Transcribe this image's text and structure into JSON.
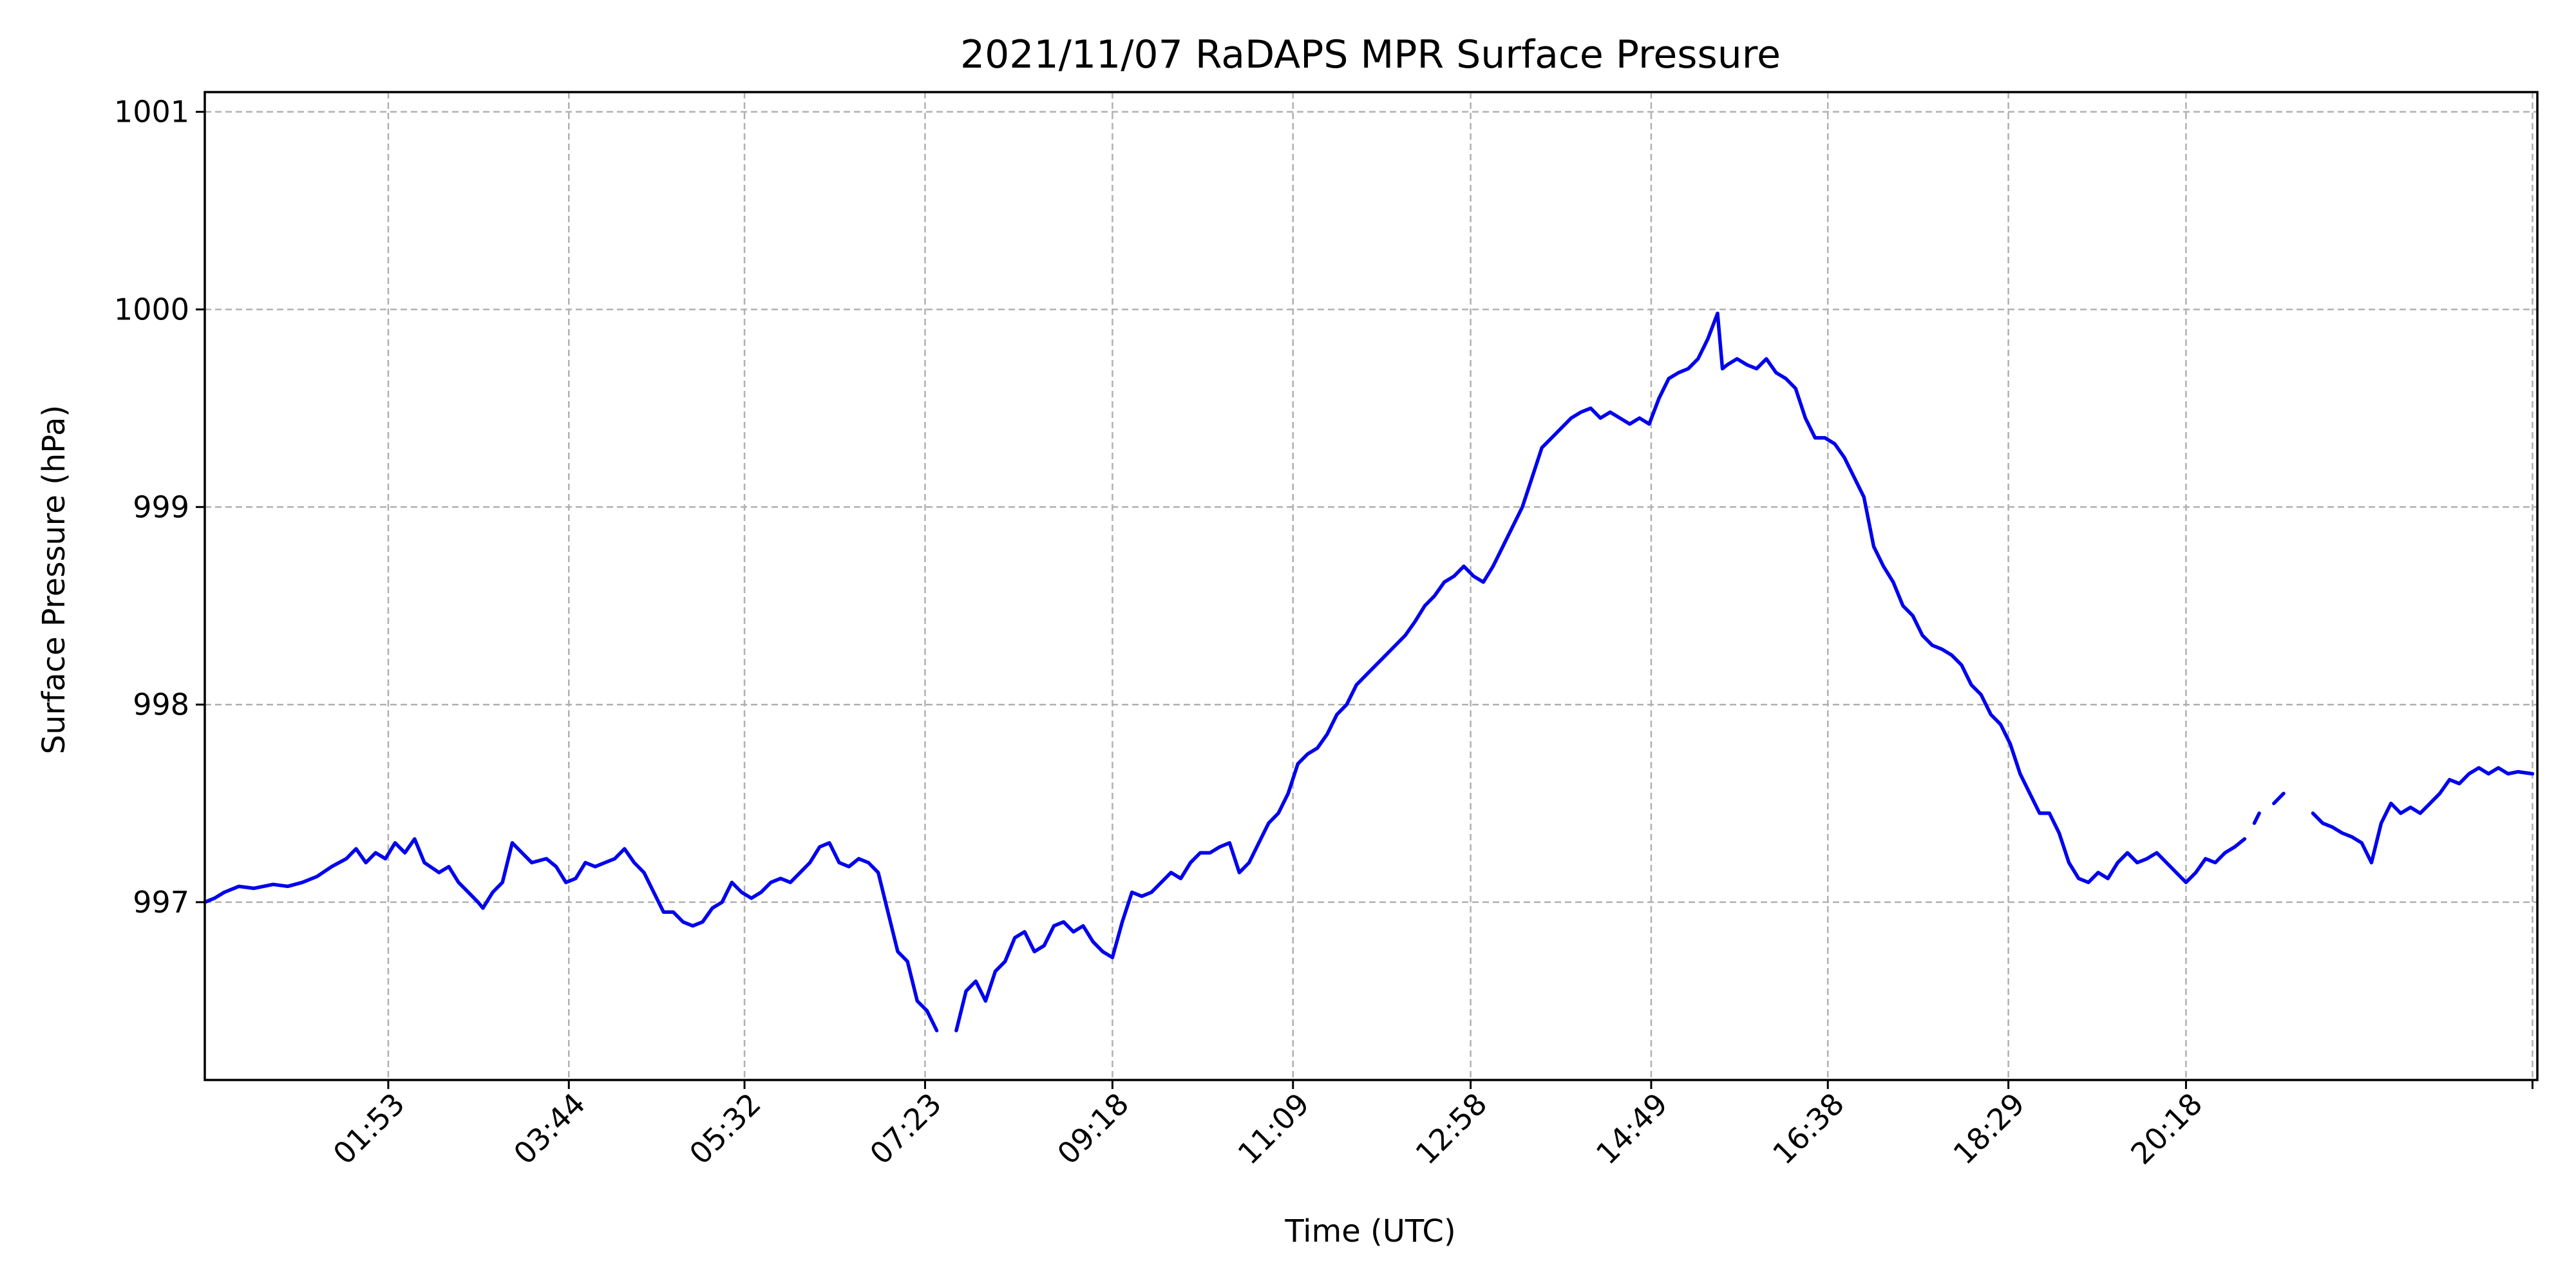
{
  "chart_data": {
    "type": "line",
    "title": "2021/11/07 RaDAPS MPR Surface Pressure",
    "xlabel": "Time (UTC)",
    "ylabel": "Surface Pressure (hPa)",
    "x_unit": "hours (UTC)",
    "xlim": [
      0.0,
      23.9
    ],
    "ylim": [
      996.1,
      1001.1
    ],
    "x_ticks": [
      {
        "value": 1.88,
        "label": "01:53"
      },
      {
        "value": 3.73,
        "label": "03:44"
      },
      {
        "value": 5.53,
        "label": "05:32"
      },
      {
        "value": 7.38,
        "label": "07:23"
      },
      {
        "value": 9.3,
        "label": "09:18"
      },
      {
        "value": 11.15,
        "label": "11:09"
      },
      {
        "value": 12.97,
        "label": "12:58"
      },
      {
        "value": 14.82,
        "label": "14:49"
      },
      {
        "value": 16.63,
        "label": "16:38"
      },
      {
        "value": 18.48,
        "label": "18:29"
      },
      {
        "value": 20.3,
        "label": "20:18"
      },
      {
        "value": 23.85,
        "label": ""
      }
    ],
    "y_ticks": [
      {
        "value": 997,
        "label": "997"
      },
      {
        "value": 998,
        "label": "998"
      },
      {
        "value": 999,
        "label": "999"
      },
      {
        "value": 1000,
        "label": "1000"
      },
      {
        "value": 1001,
        "label": "1001"
      }
    ],
    "grid": true,
    "grid_style": "dashed",
    "line_color": "#0000ee",
    "grid_color": "#b0b0b0",
    "series": [
      {
        "segments": [
          [
            [
              0.0,
              997.0
            ],
            [
              0.1,
              997.02
            ],
            [
              0.2,
              997.05
            ],
            [
              0.35,
              997.08
            ],
            [
              0.5,
              997.07
            ],
            [
              0.7,
              997.09
            ],
            [
              0.85,
              997.08
            ],
            [
              1.0,
              997.1
            ],
            [
              1.15,
              997.13
            ],
            [
              1.3,
              997.18
            ],
            [
              1.45,
              997.22
            ],
            [
              1.55,
              997.27
            ],
            [
              1.65,
              997.2
            ],
            [
              1.75,
              997.25
            ],
            [
              1.85,
              997.22
            ],
            [
              1.95,
              997.3
            ],
            [
              2.05,
              997.25
            ],
            [
              2.15,
              997.32
            ],
            [
              2.25,
              997.2
            ],
            [
              2.4,
              997.15
            ],
            [
              2.5,
              997.18
            ],
            [
              2.6,
              997.1
            ],
            [
              2.7,
              997.05
            ],
            [
              2.8,
              997.0
            ],
            [
              2.85,
              996.97
            ],
            [
              2.95,
              997.05
            ],
            [
              3.05,
              997.1
            ],
            [
              3.15,
              997.3
            ],
            [
              3.25,
              997.25
            ],
            [
              3.35,
              997.2
            ],
            [
              3.5,
              997.22
            ],
            [
              3.6,
              997.18
            ],
            [
              3.7,
              997.1
            ],
            [
              3.8,
              997.12
            ],
            [
              3.9,
              997.2
            ],
            [
              4.0,
              997.18
            ],
            [
              4.1,
              997.2
            ],
            [
              4.2,
              997.22
            ],
            [
              4.3,
              997.27
            ],
            [
              4.4,
              997.2
            ],
            [
              4.5,
              997.15
            ],
            [
              4.6,
              997.05
            ],
            [
              4.7,
              996.95
            ],
            [
              4.8,
              996.95
            ],
            [
              4.9,
              996.9
            ],
            [
              5.0,
              996.88
            ],
            [
              5.1,
              996.9
            ],
            [
              5.2,
              996.97
            ],
            [
              5.3,
              997.0
            ],
            [
              5.4,
              997.1
            ],
            [
              5.5,
              997.05
            ],
            [
              5.6,
              997.02
            ],
            [
              5.7,
              997.05
            ],
            [
              5.8,
              997.1
            ],
            [
              5.9,
              997.12
            ],
            [
              6.0,
              997.1
            ],
            [
              6.1,
              997.15
            ],
            [
              6.2,
              997.2
            ],
            [
              6.3,
              997.28
            ],
            [
              6.4,
              997.3
            ],
            [
              6.5,
              997.2
            ],
            [
              6.6,
              997.18
            ],
            [
              6.7,
              997.22
            ],
            [
              6.8,
              997.2
            ],
            [
              6.9,
              997.15
            ],
            [
              7.0,
              996.95
            ],
            [
              7.1,
              996.75
            ],
            [
              7.2,
              996.7
            ],
            [
              7.3,
              996.5
            ],
            [
              7.4,
              996.45
            ],
            [
              7.5,
              996.35
            ]
          ],
          [
            [
              7.7,
              996.35
            ],
            [
              7.8,
              996.55
            ],
            [
              7.9,
              996.6
            ],
            [
              8.0,
              996.5
            ],
            [
              8.1,
              996.65
            ],
            [
              8.2,
              996.7
            ],
            [
              8.3,
              996.82
            ],
            [
              8.4,
              996.85
            ],
            [
              8.5,
              996.75
            ],
            [
              8.6,
              996.78
            ],
            [
              8.7,
              996.88
            ],
            [
              8.8,
              996.9
            ],
            [
              8.9,
              996.85
            ],
            [
              9.0,
              996.88
            ],
            [
              9.1,
              996.8
            ],
            [
              9.2,
              996.75
            ],
            [
              9.3,
              996.72
            ],
            [
              9.4,
              996.9
            ],
            [
              9.5,
              997.05
            ],
            [
              9.6,
              997.03
            ],
            [
              9.7,
              997.05
            ],
            [
              9.8,
              997.1
            ],
            [
              9.9,
              997.15
            ],
            [
              10.0,
              997.12
            ],
            [
              10.1,
              997.2
            ],
            [
              10.2,
              997.25
            ],
            [
              10.3,
              997.25
            ],
            [
              10.4,
              997.28
            ],
            [
              10.5,
              997.3
            ],
            [
              10.6,
              997.15
            ],
            [
              10.7,
              997.2
            ],
            [
              10.8,
              997.3
            ],
            [
              10.9,
              997.4
            ],
            [
              11.0,
              997.45
            ],
            [
              11.1,
              997.55
            ],
            [
              11.2,
              997.7
            ],
            [
              11.3,
              997.75
            ],
            [
              11.4,
              997.78
            ],
            [
              11.5,
              997.85
            ],
            [
              11.6,
              997.95
            ],
            [
              11.7,
              998.0
            ],
            [
              11.8,
              998.1
            ],
            [
              11.9,
              998.15
            ],
            [
              12.0,
              998.2
            ],
            [
              12.1,
              998.25
            ],
            [
              12.2,
              998.3
            ],
            [
              12.3,
              998.35
            ],
            [
              12.4,
              998.42
            ],
            [
              12.5,
              998.5
            ],
            [
              12.6,
              998.55
            ],
            [
              12.7,
              998.62
            ],
            [
              12.8,
              998.65
            ],
            [
              12.9,
              998.7
            ],
            [
              13.0,
              998.65
            ],
            [
              13.1,
              998.62
            ],
            [
              13.2,
              998.7
            ],
            [
              13.3,
              998.8
            ],
            [
              13.4,
              998.9
            ],
            [
              13.5,
              999.0
            ],
            [
              13.6,
              999.15
            ],
            [
              13.7,
              999.3
            ],
            [
              13.8,
              999.35
            ],
            [
              13.9,
              999.4
            ],
            [
              14.0,
              999.45
            ],
            [
              14.1,
              999.48
            ],
            [
              14.2,
              999.5
            ],
            [
              14.3,
              999.45
            ],
            [
              14.4,
              999.48
            ],
            [
              14.5,
              999.45
            ],
            [
              14.6,
              999.42
            ],
            [
              14.7,
              999.45
            ],
            [
              14.8,
              999.42
            ],
            [
              14.9,
              999.55
            ],
            [
              15.0,
              999.65
            ],
            [
              15.1,
              999.68
            ],
            [
              15.2,
              999.7
            ],
            [
              15.3,
              999.75
            ],
            [
              15.4,
              999.85
            ],
            [
              15.5,
              999.98
            ],
            [
              15.55,
              999.7
            ],
            [
              15.6,
              999.72
            ],
            [
              15.7,
              999.75
            ],
            [
              15.8,
              999.72
            ],
            [
              15.9,
              999.7
            ],
            [
              16.0,
              999.75
            ],
            [
              16.1,
              999.68
            ],
            [
              16.2,
              999.65
            ],
            [
              16.3,
              999.6
            ],
            [
              16.4,
              999.45
            ],
            [
              16.5,
              999.35
            ],
            [
              16.6,
              999.35
            ],
            [
              16.7,
              999.32
            ],
            [
              16.8,
              999.25
            ],
            [
              16.9,
              999.15
            ],
            [
              17.0,
              999.05
            ],
            [
              17.1,
              998.8
            ],
            [
              17.2,
              998.7
            ],
            [
              17.3,
              998.62
            ],
            [
              17.4,
              998.5
            ],
            [
              17.5,
              998.45
            ],
            [
              17.6,
              998.35
            ],
            [
              17.7,
              998.3
            ],
            [
              17.8,
              998.28
            ],
            [
              17.9,
              998.25
            ],
            [
              18.0,
              998.2
            ],
            [
              18.1,
              998.1
            ],
            [
              18.2,
              998.05
            ],
            [
              18.3,
              997.95
            ],
            [
              18.4,
              997.9
            ],
            [
              18.5,
              997.8
            ],
            [
              18.6,
              997.65
            ],
            [
              18.7,
              997.55
            ],
            [
              18.8,
              997.45
            ],
            [
              18.9,
              997.45
            ],
            [
              19.0,
              997.35
            ],
            [
              19.1,
              997.2
            ],
            [
              19.2,
              997.12
            ],
            [
              19.3,
              997.1
            ],
            [
              19.4,
              997.15
            ],
            [
              19.5,
              997.12
            ],
            [
              19.6,
              997.2
            ],
            [
              19.7,
              997.25
            ],
            [
              19.8,
              997.2
            ],
            [
              19.9,
              997.22
            ],
            [
              20.0,
              997.25
            ],
            [
              20.1,
              997.2
            ],
            [
              20.2,
              997.15
            ],
            [
              20.3,
              997.1
            ],
            [
              20.4,
              997.15
            ],
            [
              20.5,
              997.22
            ],
            [
              20.6,
              997.2
            ],
            [
              20.7,
              997.25
            ],
            [
              20.8,
              997.28
            ],
            [
              20.9,
              997.32
            ]
          ],
          [
            [
              21.0,
              997.4
            ],
            [
              21.05,
              997.45
            ]
          ],
          [
            [
              21.2,
              997.5
            ],
            [
              21.3,
              997.55
            ]
          ],
          [
            [
              21.6,
              997.45
            ],
            [
              21.7,
              997.4
            ],
            [
              21.8,
              997.38
            ],
            [
              21.9,
              997.35
            ],
            [
              22.0,
              997.33
            ],
            [
              22.1,
              997.3
            ],
            [
              22.2,
              997.2
            ],
            [
              22.3,
              997.4
            ],
            [
              22.4,
              997.5
            ],
            [
              22.5,
              997.45
            ],
            [
              22.6,
              997.48
            ],
            [
              22.7,
              997.45
            ],
            [
              22.8,
              997.5
            ],
            [
              22.9,
              997.55
            ],
            [
              23.0,
              997.62
            ],
            [
              23.1,
              997.6
            ],
            [
              23.2,
              997.65
            ],
            [
              23.3,
              997.68
            ],
            [
              23.4,
              997.65
            ],
            [
              23.5,
              997.68
            ],
            [
              23.6,
              997.65
            ],
            [
              23.7,
              997.66
            ],
            [
              23.85,
              997.65
            ]
          ]
        ]
      }
    ]
  }
}
